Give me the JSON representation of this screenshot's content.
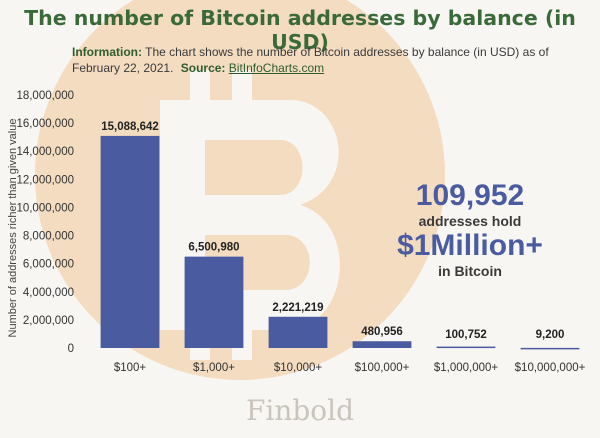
{
  "title": "The number of Bitcoin addresses by balance (in USD)",
  "info": {
    "label": "Information:",
    "text": "The chart shows the number of Bitcoin addresses by balance (in USD) as of February 22, 2021.",
    "source_label": "Source:",
    "source": "BitInfoCharts.com"
  },
  "callout": {
    "number": "109,952",
    "line1": "addresses hold",
    "amount": "$1Million+",
    "line2": "in Bitcoin"
  },
  "brand": "Finbold",
  "colors": {
    "bar": "#4a5ba0",
    "title": "#3b6a3a",
    "watermark": "#f3dcc0"
  },
  "chart_data": {
    "type": "bar",
    "categories": [
      "$100+",
      "$1,000+",
      "$10,000+",
      "$100,000+",
      "$1,000,000+",
      "$10,000,000+"
    ],
    "values": [
      15088642,
      6500980,
      2221219,
      480956,
      100752,
      9200
    ],
    "data_labels": [
      "15,088,642",
      "6,500,980",
      "2,221,219",
      "480,956",
      "100,752",
      "9,200"
    ],
    "ylabel": "Number of addresses richer than given value",
    "xlabel": "",
    "ylim": [
      0,
      18000000
    ],
    "yticks": [
      0,
      2000000,
      4000000,
      6000000,
      8000000,
      10000000,
      12000000,
      14000000,
      16000000,
      18000000
    ],
    "ytick_labels": [
      "0",
      "2,000,000",
      "4,000,000",
      "6,000,000",
      "8,000,000",
      "10,000,000",
      "12,000,000",
      "14,000,000",
      "16,000,000",
      "18,000,000"
    ],
    "grid": false
  }
}
